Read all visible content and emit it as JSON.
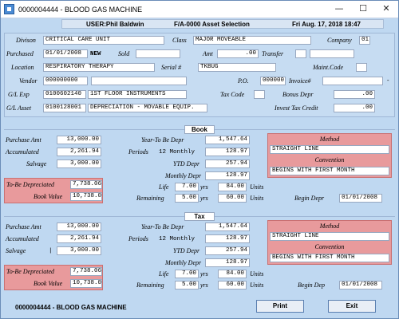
{
  "window": {
    "title": "0000004444 - BLOOD GAS MACHINE",
    "minimize": "—",
    "maximize": "☐",
    "close": "✕"
  },
  "infobar": {
    "user": "USER:Phil Baldwin",
    "screen": "F/A-0000  Asset Selection",
    "datetime": "Fri Aug. 17, 2018 18:47"
  },
  "header": {
    "division_label": "Divison",
    "division": "CRITICAL CARE UNIT",
    "class_label": "Class",
    "class": "MAJOR MOVEABLE",
    "company_label": "Company",
    "company": "01",
    "purchased_label": "Purchased",
    "purchased": "01/01/2008",
    "new_text": "NEW",
    "sold_label": "Sold",
    "sold": "",
    "amt_label": "Amt",
    "amt": ".00",
    "transfer_label": "Transfer",
    "transfer1": "",
    "transfer2": "",
    "location_label": "Location",
    "location": "RESPIRATORY THERAPY",
    "serial_label": "Serial #",
    "serial": "TKBUG",
    "maint_label": "Maint.Code",
    "maint": "",
    "vendor_label": "Vendor",
    "vendor": "000000000",
    "vendor_name": "",
    "po_label": "P.O.",
    "po": "000000",
    "invoice_label": "Invoice#",
    "invoice": "",
    "invoice_dash": "-",
    "gl_exp_label": "G/L Exp",
    "gl_exp": "0100602140",
    "gl_exp_desc": "1ST FLOOR INSTRUMENTS",
    "tax_code_label": "Tax Code",
    "tax_code": "",
    "bonus_label": "Bonus Depr",
    "bonus": ".00",
    "gl_asset_label": "G/L Asset",
    "gl_asset": "0100128001",
    "gl_asset_desc": "DEPRECIATION - MOVABLE EQUIP.",
    "itc_label": "Invest Tax Credit",
    "itc": ".00"
  },
  "book": {
    "heading": "Book",
    "purchase_amt_label": "Purchase Amt",
    "purchase_amt": "13,000.00",
    "accumulated_label": "Accumulated",
    "accumulated": "2,261.94",
    "salvage_label": "Salvage",
    "salvage": "3,000.00",
    "ytbd_label": "Year-To Be Depr",
    "ytbd": "1,547.64",
    "periods_label": "Periods",
    "periods": "12 Monthly",
    "periods_val": "128.97",
    "ytd_label": "YTD Depr",
    "ytd": "257.94",
    "monthly_label": "Monthly Depr",
    "monthly": "128.97",
    "to_be_label": "To-Be Depreciated",
    "to_be": "7,738.06",
    "book_value_label": "Book Value",
    "book_value": "10,738.06",
    "life_label": "Life",
    "life": "7.00",
    "life_yrs": "yrs",
    "life_units": "84.00",
    "life_units_label": "Units",
    "remaining_label": "Remaining",
    "remaining": "5.00",
    "remaining_yrs": "yrs",
    "remaining_units": "60.00",
    "remaining_units_label": "Units",
    "method_label": "Method",
    "method": "STRAIGHT LINE",
    "convention_label": "Convention",
    "convention": "BEGINS WITH FIRST MONTH",
    "begin_label": "Begin Depr",
    "begin": "01/01/2008"
  },
  "tax": {
    "heading": "Tax",
    "purchase_amt_label": "Purchase Amt",
    "purchase_amt": "13,000.00",
    "accumulated_label": "Accumulated",
    "accumulated": "2,261.94",
    "salvage_label": "Salvage",
    "salvage_bar": "|",
    "salvage": "3,000.00",
    "ytbd_label": "Year-To Be Depr",
    "ytbd": "1,547.64",
    "periods_label": "Periods",
    "periods": "12 Monthly",
    "periods_val": "128.97",
    "ytd_label": "YTD Depr",
    "ytd": "257.94",
    "monthly_label": "Monthly Depr",
    "monthly": "128.97",
    "to_be_label": "To-Be Depreciated",
    "to_be": "7,738.06",
    "book_value_label": "Book Value",
    "book_value": "10,738.06",
    "life_label": "Life",
    "life": "7.00",
    "life_yrs": "yrs",
    "life_units": "84.00",
    "life_units_label": "Units",
    "remaining_label": "Remaining",
    "remaining": "5.00",
    "remaining_yrs": "yrs",
    "remaining_units": "60.00",
    "remaining_units_label": "Units",
    "method_label": "Method",
    "method": "STRAIGHT LINE",
    "convention_label": "Convention",
    "convention": "BEGINS WITH FIRST MONTH",
    "begin_label": "Begin Dep",
    "begin": "01/01/2008"
  },
  "footer": {
    "asset_text": "0000004444 - BLOOD GAS MACHINE",
    "print_label": "Print",
    "exit_label": "Exit"
  },
  "colors": {
    "window_bg": "#bfd8f1",
    "pink_panel": "#e89a9c",
    "app_icon": "#4a8bd4"
  },
  "icons": {
    "app": "app-window-icon"
  }
}
